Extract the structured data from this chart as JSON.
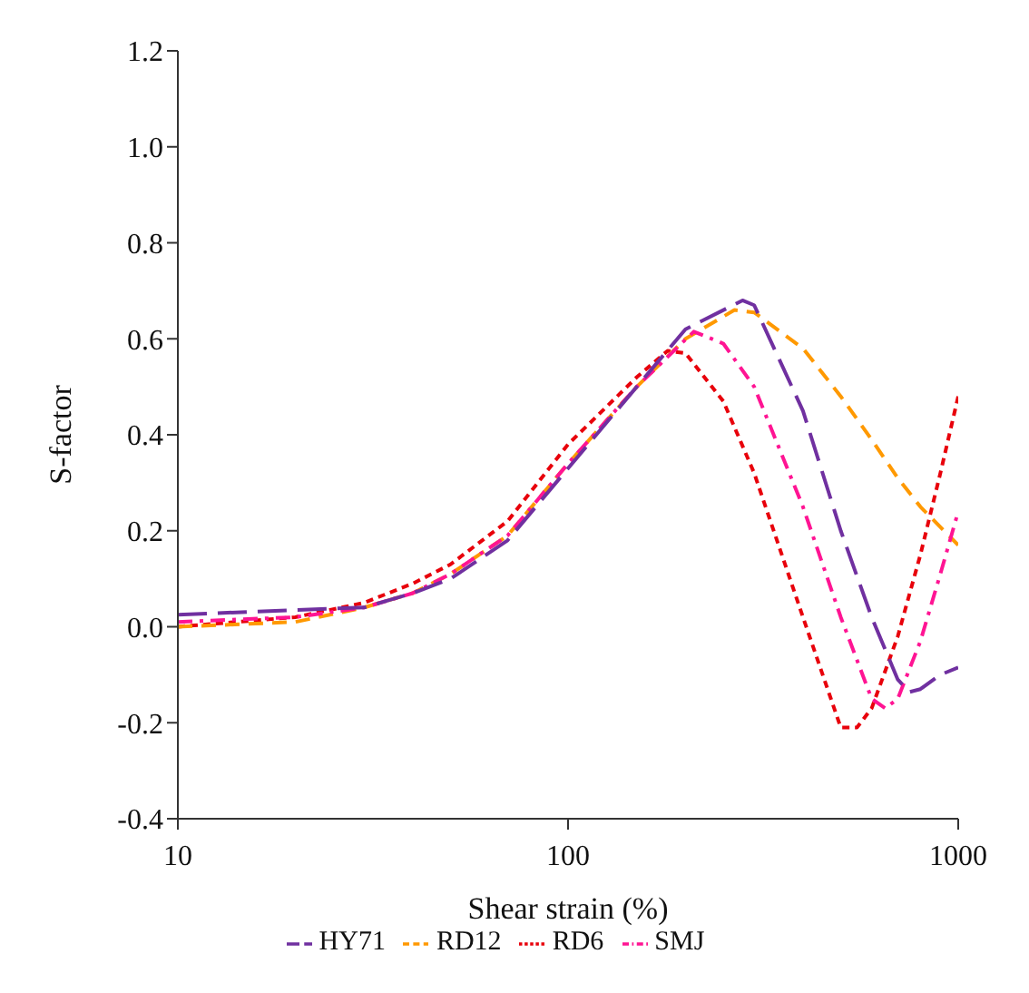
{
  "chart_data": {
    "type": "line",
    "xlabel": "Shear strain (%)",
    "ylabel": "S-factor",
    "log": "x",
    "xlim": [
      10,
      1000
    ],
    "xticks": [
      10,
      100,
      1000
    ],
    "ylim": [
      -0.4,
      1.2
    ],
    "yticks": [
      {
        "value": -0.4,
        "label": "-0.4"
      },
      {
        "value": -0.2,
        "label": "-0.2"
      },
      {
        "value": 0,
        "label": "0.0"
      },
      {
        "value": 0.2,
        "label": "0.2"
      },
      {
        "value": 0.4,
        "label": "0.4"
      },
      {
        "value": 0.6,
        "label": "0.6"
      },
      {
        "value": 0.8,
        "label": "0.8"
      },
      {
        "value": 1,
        "label": "1.0"
      },
      {
        "value": 1.2,
        "label": "1.2"
      }
    ],
    "grid": false,
    "legend": "bottom",
    "marker": "none",
    "series": [
      {
        "name": "RD6",
        "color": "#e8000b",
        "line_style": "dotted",
        "x": [
          10,
          20,
          30,
          40,
          50,
          70,
          100,
          150,
          180,
          200,
          250,
          300,
          400,
          500,
          550,
          600,
          700,
          800,
          900,
          1000
        ],
        "values": [
          0.0,
          0.02,
          0.05,
          0.09,
          0.13,
          0.22,
          0.38,
          0.52,
          0.575,
          0.57,
          0.47,
          0.32,
          0.02,
          -0.21,
          -0.21,
          -0.17,
          -0.02,
          0.15,
          0.32,
          0.48
        ]
      },
      {
        "name": "RD12",
        "color": "#ff9900",
        "line_style": "dashed",
        "x": [
          10,
          20,
          30,
          40,
          50,
          70,
          100,
          150,
          200,
          267,
          300,
          400,
          500,
          600,
          700,
          800,
          1000
        ],
        "values": [
          0.0,
          0.01,
          0.04,
          0.07,
          0.11,
          0.19,
          0.34,
          0.5,
          0.6,
          0.66,
          0.655,
          0.58,
          0.48,
          0.39,
          0.31,
          0.25,
          0.17
        ]
      },
      {
        "name": "SMJ",
        "color": "#ff1493",
        "line_style": "dashed",
        "x": [
          10,
          20,
          30,
          40,
          50,
          70,
          100,
          150,
          210,
          250,
          300,
          400,
          500,
          600,
          650,
          700,
          800,
          900,
          1000
        ],
        "values": [
          0.01,
          0.02,
          0.04,
          0.07,
          0.11,
          0.19,
          0.34,
          0.5,
          0.615,
          0.59,
          0.5,
          0.25,
          0.02,
          -0.15,
          -0.17,
          -0.15,
          -0.03,
          0.11,
          0.24
        ]
      },
      {
        "name": "HY71",
        "color": "#7030a0",
        "line_style": "dashed",
        "x": [
          10,
          20,
          30,
          40,
          50,
          70,
          100,
          150,
          200,
          280,
          300,
          400,
          500,
          600,
          700,
          750,
          800,
          900,
          1000
        ],
        "values": [
          0.025,
          0.035,
          0.04,
          0.07,
          0.1,
          0.18,
          0.33,
          0.5,
          0.62,
          0.68,
          0.67,
          0.45,
          0.2,
          0.02,
          -0.11,
          -0.136,
          -0.13,
          -0.1,
          -0.085
        ]
      }
    ]
  }
}
